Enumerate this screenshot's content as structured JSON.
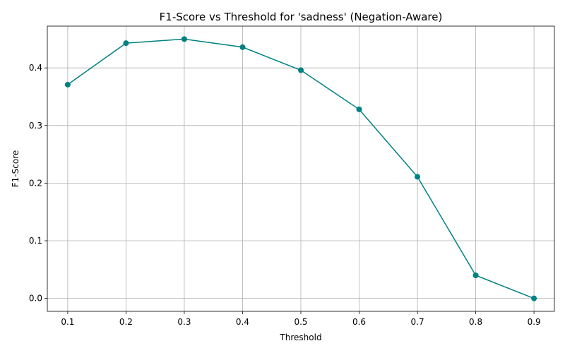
{
  "chart_data": {
    "type": "line",
    "title": "F1-Score vs Threshold for 'sadness' (Negation-Aware)",
    "xlabel": "Threshold",
    "ylabel": "F1-Score",
    "x": [
      0.1,
      0.2,
      0.3,
      0.4,
      0.5,
      0.6,
      0.7,
      0.8,
      0.9
    ],
    "series": [
      {
        "values": [
          0.371,
          0.443,
          0.45,
          0.436,
          0.396,
          0.328,
          0.211,
          0.04,
          0.0
        ]
      }
    ],
    "xlim": [
      0.065,
      0.935
    ],
    "ylim": [
      -0.0225,
      0.4725
    ],
    "xticks": [
      0.1,
      0.2,
      0.3,
      0.4,
      0.5,
      0.6,
      0.7,
      0.8,
      0.9
    ],
    "xtick_labels": [
      "0.1",
      "0.2",
      "0.3",
      "0.4",
      "0.5",
      "0.6",
      "0.7",
      "0.8",
      "0.9"
    ],
    "yticks": [
      0.0,
      0.1,
      0.2,
      0.3,
      0.4
    ],
    "ytick_labels": [
      "0.0",
      "0.1",
      "0.2",
      "0.3",
      "0.4"
    ],
    "grid": true,
    "line_color": "#008080",
    "marker": "circle"
  }
}
